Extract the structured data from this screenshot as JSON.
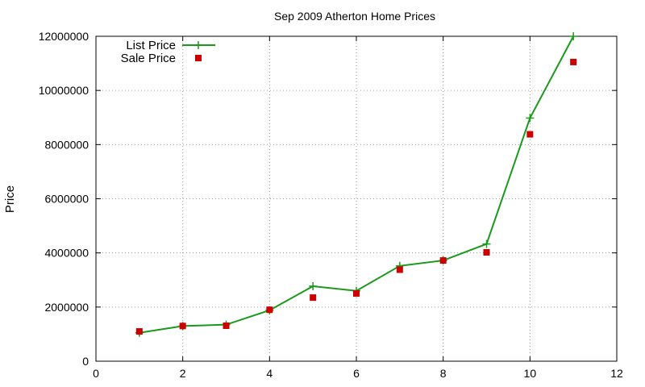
{
  "chart_data": {
    "type": "line",
    "title": "Sep 2009 Atherton Home Prices",
    "xlabel": "",
    "ylabel": "Price",
    "xlim": [
      0,
      12
    ],
    "ylim": [
      0,
      12000000
    ],
    "x_ticks": [
      "0",
      "2",
      "4",
      "6",
      "8",
      "10",
      "12"
    ],
    "y_ticks": [
      "0",
      "2000000",
      "4000000",
      "6000000",
      "8000000",
      "10000000",
      "12000000"
    ],
    "grid": true,
    "legend_position": "top-left",
    "series": [
      {
        "name": "List Price",
        "kind": "line-with-plus-markers",
        "color": "#1a9a1a",
        "x": [
          1,
          2,
          3,
          4,
          5,
          6,
          7,
          8,
          9,
          10,
          11
        ],
        "y": [
          1050000,
          1300000,
          1350000,
          1880000,
          2770000,
          2600000,
          3520000,
          3720000,
          4330000,
          8980000,
          12000000
        ]
      },
      {
        "name": "Sale Price",
        "kind": "square-markers",
        "color": "#cc0000",
        "x": [
          1,
          2,
          3,
          4,
          5,
          6,
          7,
          8,
          9,
          10,
          11
        ],
        "y": [
          1100000,
          1300000,
          1310000,
          1900000,
          2350000,
          2500000,
          3380000,
          3720000,
          4020000,
          8380000,
          11050000
        ]
      }
    ]
  }
}
